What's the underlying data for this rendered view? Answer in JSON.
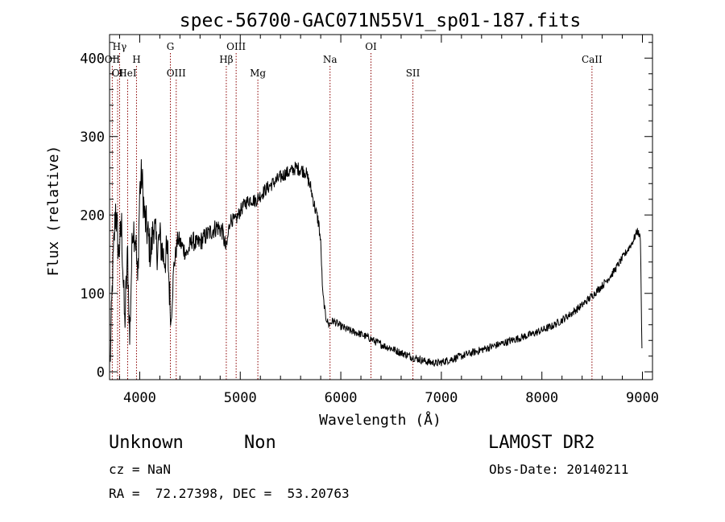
{
  "chart_data": {
    "type": "line",
    "title": "spec-56700-GAC071N55V1_sp01-187.fits",
    "xlabel": "Wavelength (Å)",
    "ylabel": "Flux (relative)",
    "xlim": [
      3700,
      9100
    ],
    "ylim": [
      -10,
      430
    ],
    "xticks": [
      4000,
      5000,
      6000,
      7000,
      8000,
      9000
    ],
    "yticks": [
      0,
      100,
      200,
      300,
      400
    ],
    "grid": false,
    "line_color": "#000000",
    "marker_color": "#8b0000",
    "lines": [
      {
        "label": "OII",
        "wave": 3727,
        "row": 2
      },
      {
        "label": "Hγ",
        "wave": 3800,
        "row": 1
      },
      {
        "label": "OI",
        "wave": 3780,
        "row": 3
      },
      {
        "label": "HeI",
        "wave": 3880,
        "row": 3
      },
      {
        "label": "H",
        "wave": 3968,
        "row": 2
      },
      {
        "label": "G",
        "wave": 4305,
        "row": 1
      },
      {
        "label": "OIII",
        "wave": 4363,
        "row": 3
      },
      {
        "label": "Hβ",
        "wave": 4861,
        "row": 2
      },
      {
        "label": "OIII",
        "wave": 4959,
        "row": 1
      },
      {
        "label": "Mg",
        "wave": 5175,
        "row": 3
      },
      {
        "label": "Na",
        "wave": 5893,
        "row": 2
      },
      {
        "label": "OI",
        "wave": 6300,
        "row": 1
      },
      {
        "label": "SII",
        "wave": 6717,
        "row": 3
      },
      {
        "label": "CaII",
        "wave": 8498,
        "row": 2
      }
    ],
    "spectrum": [
      [
        3705,
        5
      ],
      [
        3730,
        120
      ],
      [
        3760,
        210
      ],
      [
        3790,
        150
      ],
      [
        3820,
        185
      ],
      [
        3850,
        60
      ],
      [
        3880,
        150
      ],
      [
        3900,
        40
      ],
      [
        3930,
        190
      ],
      [
        3960,
        170
      ],
      [
        3980,
        110
      ],
      [
        4000,
        230
      ],
      [
        4020,
        250
      ],
      [
        4050,
        195
      ],
      [
        4080,
        175
      ],
      [
        4110,
        150
      ],
      [
        4140,
        190
      ],
      [
        4170,
        155
      ],
      [
        4200,
        170
      ],
      [
        4240,
        145
      ],
      [
        4280,
        150
      ],
      [
        4310,
        60
      ],
      [
        4340,
        135
      ],
      [
        4380,
        170
      ],
      [
        4420,
        160
      ],
      [
        4470,
        150
      ],
      [
        4520,
        168
      ],
      [
        4570,
        162
      ],
      [
        4620,
        168
      ],
      [
        4670,
        175
      ],
      [
        4720,
        180
      ],
      [
        4770,
        185
      ],
      [
        4820,
        180
      ],
      [
        4860,
        155
      ],
      [
        4900,
        195
      ],
      [
        4950,
        192
      ],
      [
        5000,
        205
      ],
      [
        5050,
        215
      ],
      [
        5100,
        220
      ],
      [
        5150,
        218
      ],
      [
        5200,
        225
      ],
      [
        5250,
        232
      ],
      [
        5300,
        238
      ],
      [
        5350,
        243
      ],
      [
        5400,
        248
      ],
      [
        5450,
        253
      ],
      [
        5500,
        255
      ],
      [
        5550,
        260
      ],
      [
        5600,
        258
      ],
      [
        5650,
        255
      ],
      [
        5700,
        235
      ],
      [
        5750,
        205
      ],
      [
        5780,
        190
      ],
      [
        5800,
        165
      ],
      [
        5820,
        100
      ],
      [
        5850,
        70
      ],
      [
        5880,
        60
      ],
      [
        5920,
        65
      ],
      [
        5960,
        62
      ],
      [
        6000,
        58
      ],
      [
        6050,
        55
      ],
      [
        6100,
        52
      ],
      [
        6150,
        50
      ],
      [
        6200,
        48
      ],
      [
        6250,
        45
      ],
      [
        6300,
        42
      ],
      [
        6350,
        38
      ],
      [
        6400,
        35
      ],
      [
        6450,
        32
      ],
      [
        6500,
        30
      ],
      [
        6550,
        27
      ],
      [
        6600,
        24
      ],
      [
        6650,
        22
      ],
      [
        6700,
        19
      ],
      [
        6750,
        17
      ],
      [
        6800,
        15
      ],
      [
        6850,
        13
      ],
      [
        6900,
        12
      ],
      [
        6950,
        11
      ],
      [
        7000,
        12
      ],
      [
        7050,
        14
      ],
      [
        7100,
        16
      ],
      [
        7150,
        18
      ],
      [
        7200,
        20
      ],
      [
        7300,
        24
      ],
      [
        7400,
        28
      ],
      [
        7500,
        32
      ],
      [
        7600,
        36
      ],
      [
        7700,
        40
      ],
      [
        7800,
        44
      ],
      [
        7900,
        48
      ],
      [
        8000,
        53
      ],
      [
        8100,
        58
      ],
      [
        8200,
        66
      ],
      [
        8300,
        75
      ],
      [
        8400,
        85
      ],
      [
        8500,
        97
      ],
      [
        8600,
        110
      ],
      [
        8700,
        125
      ],
      [
        8800,
        145
      ],
      [
        8900,
        165
      ],
      [
        8950,
        180
      ],
      [
        8980,
        170
      ],
      [
        8995,
        30
      ]
    ]
  },
  "info": {
    "object_class": "Unknown",
    "subclass": "Non",
    "survey": "LAMOST DR2",
    "cz": "cz = NaN",
    "obs_date": "Obs-Date: 20140211",
    "coords": "RA =  72.27398, DEC =  53.20763"
  }
}
